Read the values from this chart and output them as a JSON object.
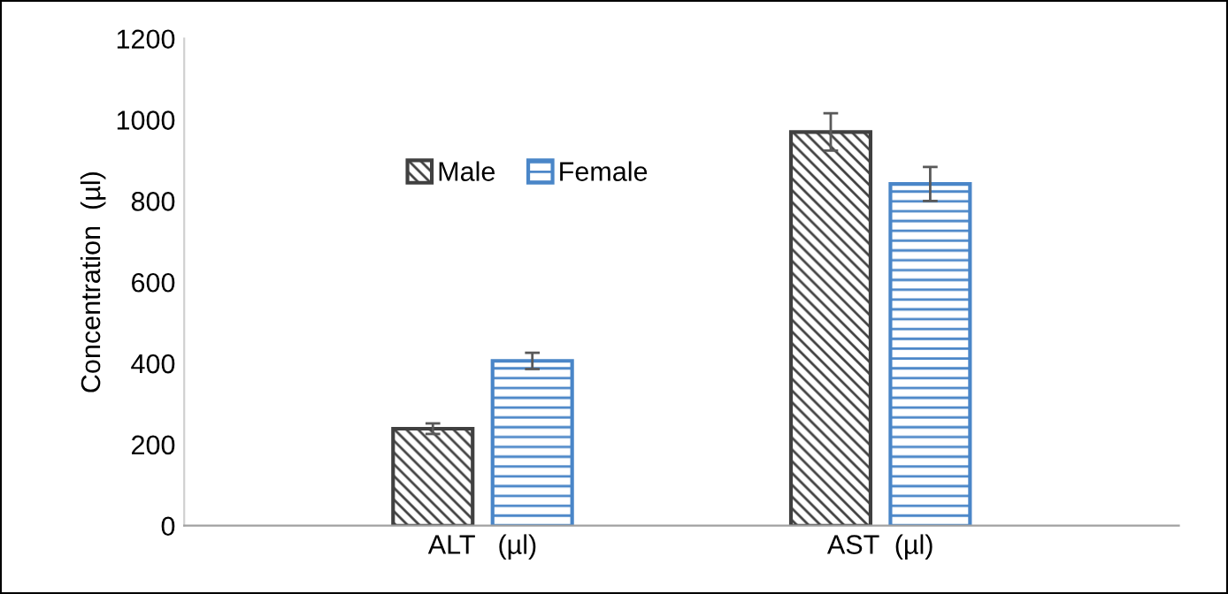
{
  "chart_data": {
    "type": "bar",
    "ylabel": "Concentration  (µl)",
    "categories": [
      "ALT   (µl)",
      "AST  (µl)"
    ],
    "series": [
      {
        "name": "Male",
        "color": "#404040",
        "values": [
          239,
          970
        ],
        "errors": [
          13,
          46
        ]
      },
      {
        "name": "Female",
        "color": "#4a86c8",
        "values": [
          406,
          842
        ],
        "errors": [
          20,
          42
        ]
      }
    ],
    "ylim": [
      0,
      1200
    ],
    "yticks": [
      0,
      200,
      400,
      600,
      800,
      1000,
      1200
    ],
    "grid": false,
    "legend": "top left"
  }
}
